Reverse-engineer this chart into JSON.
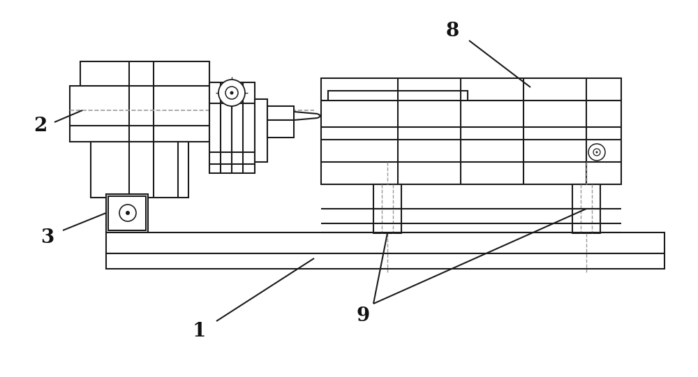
{
  "bg_color": "#ffffff",
  "line_color": "#1a1a1a",
  "dash_color": "#999999",
  "label_color": "#111111",
  "fig_width": 10.0,
  "fig_height": 5.4,
  "dpi": 100
}
